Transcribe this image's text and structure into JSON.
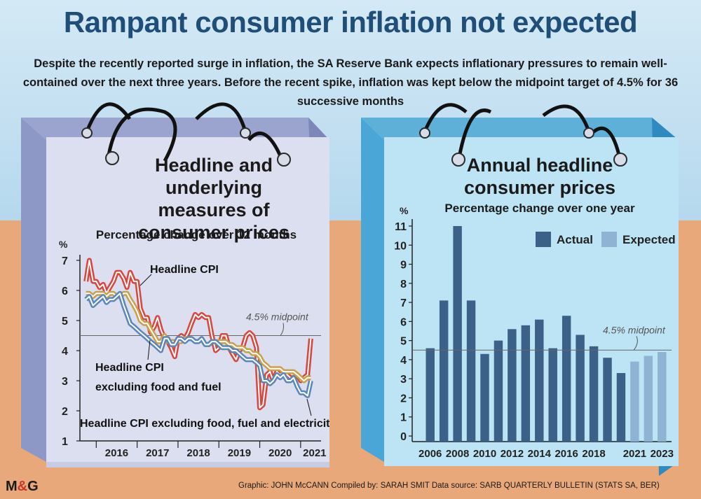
{
  "title": "Rampant consumer inflation not expected",
  "subtitle": "Despite the recently reported surge in inflation, the SA Reserve Bank expects inflationary pressures to remain well-contained over the next three years. Before the recent spike, inflation was kept below the midpoint target of 4.5% for 36 successive months",
  "colors": {
    "title_blue": "#1f4e79",
    "headline_red": "#d9453a",
    "core_gold": "#c8a04a",
    "core2_blue": "#5a86b8",
    "actual_bar": "#3c6189",
    "expected_bar": "#8fb3d3"
  },
  "credit": "Graphic: JOHN McCANN  Compiled by: SARAH SMIT  Data source: SARB QUARTERLY BULLETIN (STATS SA, BER)",
  "logo": {
    "m": "M",
    "amp": "&",
    "g": "G"
  },
  "chart_data": [
    {
      "type": "line",
      "title": "Headline and underlying measures of consumer prices",
      "subtitle": "Percentage change over 12 months",
      "ylabel": "%",
      "ylim": [
        1,
        7
      ],
      "yticks": [
        "1",
        "2",
        "3",
        "4",
        "5",
        "6",
        "7"
      ],
      "xlim": [
        2015.6,
        2021.5
      ],
      "xticks": [
        "2016",
        "2017",
        "2018",
        "2019",
        "2020",
        "2021"
      ],
      "reference_line": {
        "value": 4.5,
        "label": "4.5% midpoint"
      },
      "series": [
        {
          "name": "Headline CPI",
          "x": [
            2015.75,
            2015.83,
            2015.92,
            2016.0,
            2016.08,
            2016.17,
            2016.25,
            2016.33,
            2016.42,
            2016.5,
            2016.58,
            2016.67,
            2016.75,
            2016.83,
            2016.92,
            2017.0,
            2017.08,
            2017.17,
            2017.25,
            2017.33,
            2017.42,
            2017.5,
            2017.58,
            2017.67,
            2017.75,
            2017.83,
            2017.92,
            2018.0,
            2018.08,
            2018.17,
            2018.25,
            2018.33,
            2018.42,
            2018.5,
            2018.58,
            2018.67,
            2018.75,
            2018.83,
            2018.92,
            2019.0,
            2019.08,
            2019.17,
            2019.25,
            2019.33,
            2019.42,
            2019.5,
            2019.58,
            2019.67,
            2019.75,
            2019.83,
            2019.92,
            2020.0,
            2020.08,
            2020.17,
            2020.25,
            2020.33,
            2020.42,
            2020.5,
            2020.58,
            2020.67,
            2020.75,
            2020.83,
            2020.92,
            2021.0,
            2021.08,
            2021.17,
            2021.25
          ],
          "values": [
            6.3,
            7.0,
            6.3,
            6.3,
            6.1,
            6.2,
            5.9,
            6.1,
            6.3,
            6.6,
            6.6,
            6.4,
            6.1,
            6.6,
            6.3,
            6.3,
            5.4,
            5.1,
            5.1,
            4.6,
            4.8,
            5.1,
            4.7,
            4.4,
            4.3,
            4.1,
            3.8,
            4.4,
            4.5,
            4.4,
            4.6,
            4.9,
            5.2,
            5.1,
            5.2,
            5.1,
            5.1,
            4.5,
            4.0,
            4.1,
            4.5,
            4.5,
            4.1,
            3.9,
            3.7,
            4.0,
            4.1,
            4.5,
            4.6,
            4.5,
            4.1,
            2.1,
            2.2,
            3.2,
            3.3,
            3.0,
            3.3,
            3.2,
            3.3,
            3.2,
            3.1,
            3.1,
            3.2,
            3.0,
            3.1,
            3.2,
            4.4
          ]
        },
        {
          "name": "Headline CPI excluding food and fuel",
          "x": [
            2015.75,
            2015.83,
            2015.92,
            2016.0,
            2016.08,
            2016.17,
            2016.25,
            2016.33,
            2016.42,
            2016.5,
            2016.58,
            2016.67,
            2016.75,
            2016.83,
            2016.92,
            2017.0,
            2017.08,
            2017.17,
            2017.25,
            2017.33,
            2017.42,
            2017.5,
            2017.58,
            2017.67,
            2017.75,
            2017.83,
            2017.92,
            2018.0,
            2018.08,
            2018.17,
            2018.25,
            2018.33,
            2018.42,
            2018.5,
            2018.58,
            2018.67,
            2018.75,
            2018.83,
            2018.92,
            2019.0,
            2019.08,
            2019.17,
            2019.25,
            2019.33,
            2019.42,
            2019.5,
            2019.58,
            2019.67,
            2019.75,
            2019.83,
            2019.92,
            2020.0,
            2020.08,
            2020.17,
            2020.25,
            2020.33,
            2020.42,
            2020.5,
            2020.58,
            2020.67,
            2020.75,
            2020.83,
            2020.92,
            2021.0,
            2021.08,
            2021.17,
            2021.25
          ],
          "values": [
            5.9,
            5.9,
            5.8,
            5.9,
            5.9,
            5.9,
            5.8,
            5.9,
            5.9,
            5.8,
            5.8,
            5.9,
            5.9,
            5.7,
            5.5,
            5.3,
            5.0,
            4.9,
            4.9,
            4.7,
            4.5,
            4.3,
            4.3,
            4.5,
            4.3,
            4.3,
            4.3,
            4.3,
            4.3,
            4.4,
            4.4,
            4.4,
            4.3,
            4.3,
            4.4,
            4.2,
            4.2,
            4.3,
            4.3,
            4.3,
            4.3,
            4.3,
            4.2,
            4.2,
            4.1,
            4.1,
            4.1,
            4.0,
            4.0,
            3.9,
            3.9,
            3.8,
            3.6,
            3.5,
            3.4,
            3.4,
            3.4,
            3.4,
            3.3,
            3.3,
            3.3,
            3.3,
            3.2,
            3.1,
            3.0,
            3.1,
            3.1
          ]
        },
        {
          "name": "Headline CPI excluding food, fuel and electricity",
          "x": [
            2015.75,
            2015.83,
            2015.92,
            2016.0,
            2016.08,
            2016.17,
            2016.25,
            2016.33,
            2016.42,
            2016.5,
            2016.58,
            2016.67,
            2016.75,
            2016.83,
            2016.92,
            2017.0,
            2017.08,
            2017.17,
            2017.25,
            2017.33,
            2017.42,
            2017.5,
            2017.58,
            2017.67,
            2017.75,
            2017.83,
            2017.92,
            2018.0,
            2018.08,
            2018.17,
            2018.25,
            2018.33,
            2018.42,
            2018.5,
            2018.58,
            2018.67,
            2018.75,
            2018.83,
            2018.92,
            2019.0,
            2019.08,
            2019.17,
            2019.25,
            2019.33,
            2019.42,
            2019.5,
            2019.58,
            2019.67,
            2019.75,
            2019.83,
            2019.92,
            2020.0,
            2020.08,
            2020.17,
            2020.25,
            2020.33,
            2020.42,
            2020.5,
            2020.58,
            2020.67,
            2020.75,
            2020.83,
            2020.92,
            2021.0,
            2021.08,
            2021.17,
            2021.25
          ],
          "values": [
            5.7,
            5.8,
            5.5,
            5.6,
            5.7,
            5.8,
            5.6,
            5.7,
            5.7,
            5.8,
            5.9,
            5.5,
            5.2,
            4.9,
            4.8,
            4.7,
            4.6,
            4.5,
            4.4,
            4.3,
            4.2,
            4.1,
            4.0,
            4.4,
            4.4,
            4.2,
            4.2,
            4.4,
            4.4,
            4.3,
            4.4,
            4.4,
            4.3,
            4.3,
            4.4,
            4.2,
            4.2,
            4.3,
            4.3,
            4.2,
            4.1,
            4.1,
            4.1,
            4.0,
            4.0,
            3.9,
            3.8,
            3.7,
            3.7,
            3.7,
            3.6,
            3.5,
            3.0,
            3.0,
            2.9,
            3.0,
            3.2,
            3.1,
            3.2,
            3.0,
            3.0,
            3.1,
            2.8,
            2.6,
            2.6,
            2.5,
            3.0
          ]
        }
      ],
      "annotations": [
        {
          "text": "Headline CPI",
          "series": 0
        },
        {
          "text": "Headline CPI",
          "series": 1
        },
        {
          "text": "excluding food and fuel",
          "series": 1
        },
        {
          "text": "Headline CPI excluding food, fuel and electricity",
          "series": 2
        }
      ]
    },
    {
      "type": "bar",
      "title": "Annual headline consumer prices",
      "subtitle": "Percentage change over one year",
      "ylabel": "%",
      "ylim": [
        0,
        11
      ],
      "yticks": [
        "0",
        "1",
        "2",
        "3",
        "4",
        "5",
        "6",
        "7",
        "8",
        "9",
        "10",
        "11"
      ],
      "categories": [
        "2006",
        "2007",
        "2008",
        "2009",
        "2010",
        "2011",
        "2012",
        "2013",
        "2014",
        "2015",
        "2016",
        "2017",
        "2018",
        "2019",
        "2020",
        "2021",
        "2022",
        "2023"
      ],
      "xtick_labels": [
        "2006",
        "2008",
        "2010",
        "2012",
        "2014",
        "2016",
        "2018",
        "2021",
        "2023"
      ],
      "xtick_categories": [
        "2006",
        "2008",
        "2010",
        "2012",
        "2014",
        "2016",
        "2018",
        "2021",
        "2023"
      ],
      "series": [
        {
          "name": "Actual",
          "values": [
            4.6,
            7.1,
            11.0,
            7.1,
            4.3,
            5.0,
            5.6,
            5.8,
            6.1,
            4.6,
            6.3,
            5.3,
            4.7,
            4.1,
            3.3,
            null,
            null,
            null
          ]
        },
        {
          "name": "Expected",
          "values": [
            null,
            null,
            null,
            null,
            null,
            null,
            null,
            null,
            null,
            null,
            null,
            null,
            null,
            null,
            null,
            3.9,
            4.2,
            4.4
          ]
        }
      ],
      "reference_line": {
        "value": 4.5,
        "label": "4.5% midpoint"
      },
      "legend": "top-right"
    }
  ]
}
